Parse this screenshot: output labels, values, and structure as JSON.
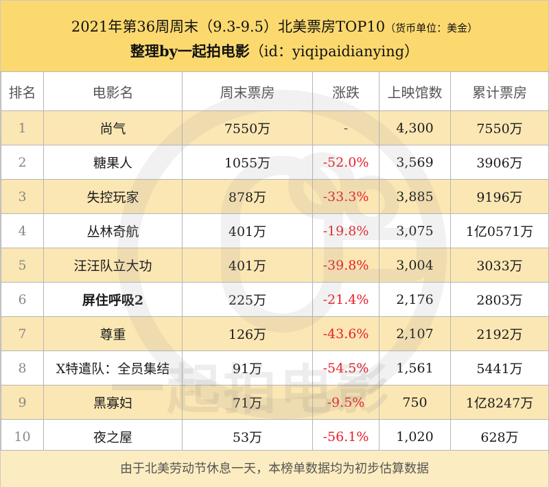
{
  "header": {
    "title_main": "2021年第36周周末（9.3-9.5）北美票房TOP10",
    "title_unit": "（货币单位：美金）",
    "subtitle_bold": "整理by一起拍电影",
    "subtitle_id": "（id：yiqipaidianying）"
  },
  "columns": [
    "排名",
    "电影名",
    "周末票房",
    "涨跌",
    "上映馆数",
    "累计票房"
  ],
  "rows": [
    {
      "rank": "1",
      "title": "尚气",
      "weekend": "7550万",
      "change": "-",
      "theaters": "4,300",
      "total": "7550万"
    },
    {
      "rank": "2",
      "title": "糖果人",
      "weekend": "1055万",
      "change": "-52.0%",
      "theaters": "3,569",
      "total": "3906万"
    },
    {
      "rank": "3",
      "title": "失控玩家",
      "weekend": "878万",
      "change": "-33.3%",
      "theaters": "3,885",
      "total": "9196万"
    },
    {
      "rank": "4",
      "title": "丛林奇航",
      "weekend": "401万",
      "change": "-19.8%",
      "theaters": "3,075",
      "total": "1亿0571万"
    },
    {
      "rank": "5",
      "title": "汪汪队立大功",
      "weekend": "401万",
      "change": "-39.8%",
      "theaters": "3,004",
      "total": "3033万"
    },
    {
      "rank": "6",
      "title": "屏住呼吸2",
      "weekend": "225万",
      "change": "-21.4%",
      "theaters": "2,176",
      "total": "2803万"
    },
    {
      "rank": "7",
      "title": "尊重",
      "weekend": "126万",
      "change": "-43.6%",
      "theaters": "2,107",
      "total": "2192万"
    },
    {
      "rank": "8",
      "title": "X特遣队：全员集结",
      "weekend": "91万",
      "change": "-54.5%",
      "theaters": "1,561",
      "total": "5441万"
    },
    {
      "rank": "9",
      "title": "黑寡妇",
      "weekend": "71万",
      "change": "-9.5%",
      "theaters": "750",
      "total": "1亿8247万"
    },
    {
      "rank": "10",
      "title": "夜之屋",
      "weekend": "53万",
      "change": "-56.1%",
      "theaters": "1,020",
      "total": "628万"
    }
  ],
  "footer": {
    "note": "由于北美劳动节休息一天，本榜单数据均为初步估算数据"
  },
  "watermark": {
    "text": "一起拍电影"
  },
  "colors": {
    "header_bg": "#fcd96f",
    "row_highlight": "#fbe7b4",
    "footer_bg": "#fcecc1",
    "negative": "#e8202a"
  }
}
